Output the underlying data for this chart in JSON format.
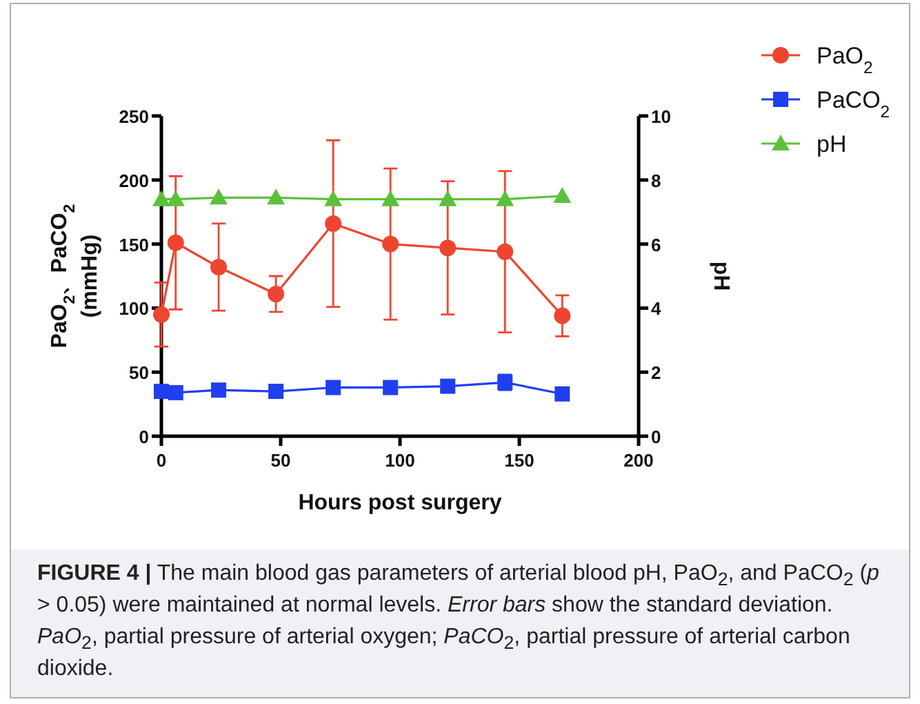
{
  "chart_data": {
    "type": "line",
    "xlabel": "Hours post surgery",
    "ylabel": "PaO$_{2}$、PaCO$_{2}$ (mmHg)",
    "y2label": "pH",
    "x": [
      0,
      6,
      24,
      48,
      72,
      96,
      120,
      144,
      168
    ],
    "xlim": [
      0,
      200
    ],
    "xticks": [
      0,
      50,
      100,
      150,
      200
    ],
    "ylim": [
      0,
      250
    ],
    "yticks": [
      0,
      50,
      100,
      150,
      200,
      250
    ],
    "y2lim": [
      0,
      10
    ],
    "y2ticks": [
      0,
      2,
      4,
      6,
      8,
      10
    ],
    "legend": "top right",
    "grid": false,
    "series": [
      {
        "name": "PaO$_{2}$",
        "color": "#ee4530",
        "marker": "circle",
        "values": [
          95,
          151,
          132,
          111,
          166,
          150,
          147,
          144,
          94
        ],
        "errors": [
          25,
          52,
          34,
          14,
          65,
          59,
          52,
          63,
          16
        ]
      },
      {
        "name": "PaCO$_{2}$",
        "color": "#1f3ff0",
        "marker": "square",
        "values": [
          35,
          34,
          36,
          35,
          38,
          38,
          39,
          42,
          33
        ],
        "errors": [
          null,
          null,
          null,
          null,
          null,
          null,
          null,
          6,
          null
        ]
      },
      {
        "name": "pH",
        "color": "#5cc13a",
        "marker": "triangle",
        "axis": "y2",
        "values": [
          7.4,
          7.4,
          7.45,
          7.45,
          7.4,
          7.4,
          7.4,
          7.4,
          7.5
        ]
      }
    ],
    "annotations": [
      "**FIGURE 4 |** The main blood gas parameters of arterial blood pH, PaO$_{2}$, and PaCO$_{2}$ (*p* > 0.05) were maintained at normal levels. *Error bars* show the standard deviation. *PaO*$_{2}$, partial pressure of arterial oxygen; *PaCO*$_{2}$, partial pressure of arterial carbon dioxide."
    ]
  }
}
